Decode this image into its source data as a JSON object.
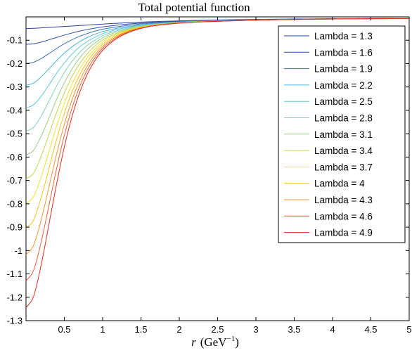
{
  "chart_data": {
    "type": "line",
    "title": "Total potential function",
    "xlabel_var": "r",
    "xlabel_unit": "GeV",
    "xlabel_exp": "−1",
    "ylabel": "",
    "xlim": [
      0,
      5
    ],
    "ylim": [
      -1.3,
      0
    ],
    "xticks": [
      0.5,
      1,
      1.5,
      2,
      2.5,
      3,
      3.5,
      4,
      4.5,
      5
    ],
    "xtick_labels": [
      "0.5",
      "1",
      "1.5",
      "2",
      "2.5",
      "3",
      "3.5",
      "4",
      "4.5",
      "5"
    ],
    "yticks": [
      -0.1,
      -0.2,
      -0.3,
      -0.4,
      -0.5,
      -0.6,
      -0.7,
      -0.8,
      -0.9,
      -1,
      -1.1,
      -1.2,
      -1.3
    ],
    "ytick_labels": [
      "-0.1",
      "-0.2",
      "-0.3",
      "-0.4",
      "-0.5",
      "-0.6",
      "-0.7",
      "-0.8",
      "-0.9",
      "-1",
      "-1.1",
      "-1.2",
      "-1.3"
    ],
    "grid": false,
    "legend_position": "top-right",
    "x": [
      0,
      0.1,
      0.2,
      0.3,
      0.4,
      0.5,
      0.6,
      0.7,
      0.8,
      0.9,
      1.0,
      1.2,
      1.4,
      1.6,
      1.8,
      2.0,
      2.25,
      2.5,
      3.0,
      3.5,
      4.0,
      4.5,
      5.0
    ],
    "series": [
      {
        "name": "Lambda = 1.3",
        "color": "#2b3f9c",
        "values": [
          -0.05,
          -0.049,
          -0.047,
          -0.045,
          -0.043,
          -0.041,
          -0.039,
          -0.037,
          -0.035,
          -0.033,
          -0.031,
          -0.027,
          -0.024,
          -0.021,
          -0.019,
          -0.017,
          -0.015,
          -0.013,
          -0.011,
          -0.009,
          -0.008,
          -0.007,
          -0.006
        ]
      },
      {
        "name": "Lambda = 1.6",
        "color": "#2f4ea3",
        "values": [
          -0.118,
          -0.115,
          -0.108,
          -0.098,
          -0.088,
          -0.078,
          -0.069,
          -0.061,
          -0.054,
          -0.048,
          -0.043,
          -0.035,
          -0.029,
          -0.025,
          -0.022,
          -0.019,
          -0.017,
          -0.015,
          -0.012,
          -0.01,
          -0.008,
          -0.007,
          -0.006
        ]
      },
      {
        "name": "Lambda = 1.9",
        "color": "#3c6fb5",
        "values": [
          -0.2,
          -0.194,
          -0.178,
          -0.157,
          -0.135,
          -0.115,
          -0.098,
          -0.083,
          -0.071,
          -0.061,
          -0.053,
          -0.042,
          -0.034,
          -0.028,
          -0.024,
          -0.021,
          -0.018,
          -0.016,
          -0.013,
          -0.011,
          -0.009,
          -0.007,
          -0.006
        ]
      },
      {
        "name": "Lambda = 2.2",
        "color": "#45b6dc",
        "values": [
          -0.293,
          -0.283,
          -0.256,
          -0.222,
          -0.187,
          -0.155,
          -0.128,
          -0.106,
          -0.088,
          -0.074,
          -0.063,
          -0.048,
          -0.038,
          -0.031,
          -0.026,
          -0.022,
          -0.019,
          -0.017,
          -0.013,
          -0.011,
          -0.009,
          -0.008,
          -0.006
        ]
      },
      {
        "name": "Lambda = 2.5",
        "color": "#62c7dc",
        "values": [
          -0.39,
          -0.376,
          -0.339,
          -0.291,
          -0.241,
          -0.197,
          -0.159,
          -0.129,
          -0.105,
          -0.087,
          -0.072,
          -0.053,
          -0.041,
          -0.033,
          -0.027,
          -0.023,
          -0.02,
          -0.017,
          -0.014,
          -0.011,
          -0.009,
          -0.008,
          -0.006
        ]
      },
      {
        "name": "Lambda = 2.8",
        "color": "#85cfc0",
        "values": [
          -0.49,
          -0.472,
          -0.423,
          -0.36,
          -0.296,
          -0.238,
          -0.19,
          -0.152,
          -0.122,
          -0.099,
          -0.081,
          -0.058,
          -0.044,
          -0.035,
          -0.028,
          -0.024,
          -0.02,
          -0.018,
          -0.014,
          -0.011,
          -0.009,
          -0.008,
          -0.007
        ]
      },
      {
        "name": "Lambda = 3.1",
        "color": "#97cc84",
        "values": [
          -0.592,
          -0.57,
          -0.509,
          -0.432,
          -0.352,
          -0.282,
          -0.223,
          -0.176,
          -0.139,
          -0.111,
          -0.09,
          -0.063,
          -0.047,
          -0.036,
          -0.029,
          -0.024,
          -0.021,
          -0.018,
          -0.014,
          -0.011,
          -0.009,
          -0.008,
          -0.007
        ]
      },
      {
        "name": "Lambda = 3.4",
        "color": "#bdd752",
        "values": [
          -0.695,
          -0.668,
          -0.595,
          -0.503,
          -0.409,
          -0.325,
          -0.255,
          -0.2,
          -0.157,
          -0.124,
          -0.099,
          -0.068,
          -0.049,
          -0.037,
          -0.03,
          -0.025,
          -0.021,
          -0.018,
          -0.014,
          -0.011,
          -0.009,
          -0.008,
          -0.007
        ]
      },
      {
        "name": "Lambda = 3.7",
        "color": "#f0e428",
        "values": [
          -0.8,
          -0.768,
          -0.683,
          -0.575,
          -0.466,
          -0.369,
          -0.288,
          -0.224,
          -0.174,
          -0.137,
          -0.108,
          -0.072,
          -0.051,
          -0.038,
          -0.031,
          -0.025,
          -0.021,
          -0.018,
          -0.014,
          -0.011,
          -0.009,
          -0.008,
          -0.007
        ]
      },
      {
        "name": "Lambda = 4",
        "color": "#f7c21a",
        "values": [
          -0.905,
          -0.869,
          -0.771,
          -0.648,
          -0.524,
          -0.413,
          -0.321,
          -0.248,
          -0.192,
          -0.149,
          -0.117,
          -0.077,
          -0.053,
          -0.039,
          -0.031,
          -0.025,
          -0.021,
          -0.019,
          -0.014,
          -0.011,
          -0.009,
          -0.008,
          -0.007
        ]
      },
      {
        "name": "Lambda = 4.3",
        "color": "#f39330",
        "values": [
          -1.018,
          -0.977,
          -0.866,
          -0.727,
          -0.586,
          -0.46,
          -0.356,
          -0.273,
          -0.21,
          -0.162,
          -0.126,
          -0.081,
          -0.055,
          -0.04,
          -0.031,
          -0.026,
          -0.022,
          -0.019,
          -0.014,
          -0.011,
          -0.009,
          -0.008,
          -0.007
        ]
      },
      {
        "name": "Lambda = 4.6",
        "color": "#e9603f",
        "values": [
          -1.13,
          -1.084,
          -0.96,
          -0.805,
          -0.648,
          -0.507,
          -0.39,
          -0.298,
          -0.227,
          -0.174,
          -0.134,
          -0.085,
          -0.057,
          -0.041,
          -0.032,
          -0.026,
          -0.022,
          -0.019,
          -0.014,
          -0.011,
          -0.009,
          -0.008,
          -0.007
        ]
      },
      {
        "name": "Lambda = 4.9",
        "color": "#e02a1f",
        "values": [
          -1.245,
          -1.195,
          -1.058,
          -0.886,
          -0.713,
          -0.557,
          -0.427,
          -0.324,
          -0.245,
          -0.187,
          -0.143,
          -0.089,
          -0.059,
          -0.042,
          -0.033,
          -0.027,
          -0.022,
          -0.019,
          -0.014,
          -0.011,
          -0.009,
          -0.008,
          -0.007
        ]
      }
    ]
  }
}
